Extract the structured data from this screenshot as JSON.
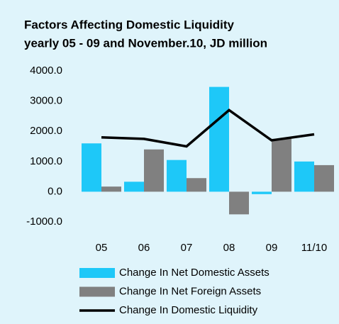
{
  "chart_data": {
    "type": "bar_line",
    "title": [
      "Factors Affecting Domestic Liquidity",
      "yearly 05 - 09 and November.10, JD million"
    ],
    "categories": [
      "05",
      "06",
      "07",
      "08",
      "09",
      "11/10"
    ],
    "series": [
      {
        "name": "Change In Net Domestic Assets",
        "type": "bar",
        "color": "#1ec8f8",
        "values": [
          1600,
          330,
          1050,
          3470,
          -80,
          1000
        ]
      },
      {
        "name": "Change In Net Foreign Assets",
        "type": "bar",
        "color": "#808080",
        "values": [
          170,
          1400,
          450,
          -750,
          1750,
          880
        ]
      },
      {
        "name": "Change In Domestic Liquidity",
        "type": "line",
        "color": "#000000",
        "values": [
          1800,
          1750,
          1500,
          2700,
          1700,
          1900
        ]
      }
    ],
    "ylim": [
      -1000,
      4000
    ],
    "yticks": [
      {
        "value": -1000,
        "label": "-1000.0"
      },
      {
        "value": 0,
        "label": "0.0"
      },
      {
        "value": 1000,
        "label": "1000.0"
      },
      {
        "value": 2000,
        "label": "2000.0"
      },
      {
        "value": 3000,
        "label": "3000.0"
      },
      {
        "value": 4000,
        "label": "4000.0"
      }
    ],
    "grid": false,
    "legend": "bottom",
    "background": "#dff4fb"
  }
}
